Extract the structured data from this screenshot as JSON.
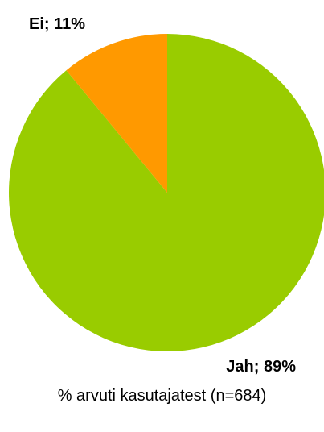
{
  "chart_data": {
    "type": "pie",
    "slices": [
      {
        "category": "Jah",
        "value": 89,
        "label": "Jah; 89%",
        "color": "#99cc00"
      },
      {
        "category": "Ei",
        "value": 11,
        "label": "Ei; 11%",
        "color": "#ff9900"
      }
    ],
    "caption": "% arvuti kasutajatest (n=684)",
    "legend": "none",
    "start_angle_deg": 0,
    "direction": "clockwise",
    "first_slice_drawn": "Ei"
  }
}
